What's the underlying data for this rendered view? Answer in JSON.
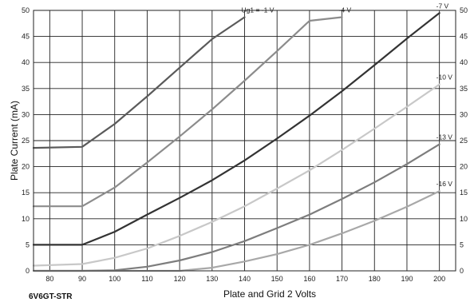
{
  "chart_data": {
    "type": "line",
    "model_label": "6V6GT-STR",
    "xlabel": "Plate and Grid 2 Volts",
    "ylabel": "Plate Current (mA)",
    "xlim": [
      75,
      205
    ],
    "ylim": [
      0,
      50
    ],
    "x_ticks": [
      80,
      90,
      100,
      110,
      120,
      130,
      140,
      150,
      160,
      170,
      180,
      190,
      200
    ],
    "y_ticks": [
      0,
      5,
      10,
      15,
      20,
      25,
      30,
      35,
      40,
      45,
      50
    ],
    "grid": true,
    "series": [
      {
        "name": "Ug1 = -1 V",
        "color": "#5a5a5a",
        "x": [
          75,
          90,
          100,
          110,
          120,
          130,
          140
        ],
        "y": [
          23.6,
          23.8,
          28.2,
          33.5,
          39.0,
          44.5,
          48.7
        ]
      },
      {
        "name": "-4 V",
        "color": "#8c8c8c",
        "x": [
          75,
          90,
          100,
          110,
          120,
          130,
          140,
          150,
          160,
          170
        ],
        "y": [
          12.4,
          12.4,
          16.0,
          20.8,
          25.8,
          31.0,
          36.5,
          42.2,
          48.0,
          48.7
        ]
      },
      {
        "name": "-7 V",
        "color": "#333333",
        "x": [
          75,
          90,
          100,
          110,
          120,
          130,
          140,
          150,
          160,
          170,
          180,
          190,
          200
        ],
        "y": [
          5.0,
          5.0,
          7.5,
          10.8,
          14.0,
          17.4,
          21.2,
          25.4,
          29.8,
          34.5,
          39.5,
          44.6,
          49.5
        ]
      },
      {
        "name": "-10 V",
        "color": "#c8c8c8",
        "x": [
          75,
          90,
          100,
          110,
          120,
          130,
          140,
          150,
          160,
          170,
          180,
          190,
          200
        ],
        "y": [
          1.0,
          1.3,
          2.5,
          4.3,
          6.7,
          9.4,
          12.4,
          15.8,
          19.3,
          23.2,
          27.3,
          31.5,
          35.8
        ]
      },
      {
        "name": "-13 V",
        "color": "#7d7d7d",
        "x": [
          75,
          90,
          100,
          110,
          120,
          130,
          140,
          150,
          160,
          170,
          180,
          190,
          200
        ],
        "y": [
          0.0,
          0.0,
          0.1,
          0.8,
          2.0,
          3.6,
          5.7,
          8.2,
          10.8,
          13.8,
          17.0,
          20.5,
          24.3
        ]
      },
      {
        "name": "-16 V",
        "color": "#a8a8a8",
        "x": [
          75,
          110,
          120,
          130,
          140,
          150,
          160,
          170,
          180,
          190,
          200
        ],
        "y": [
          0.0,
          0.0,
          0.0,
          0.6,
          1.8,
          3.2,
          5.0,
          7.2,
          9.6,
          12.3,
          15.3
        ]
      }
    ]
  }
}
